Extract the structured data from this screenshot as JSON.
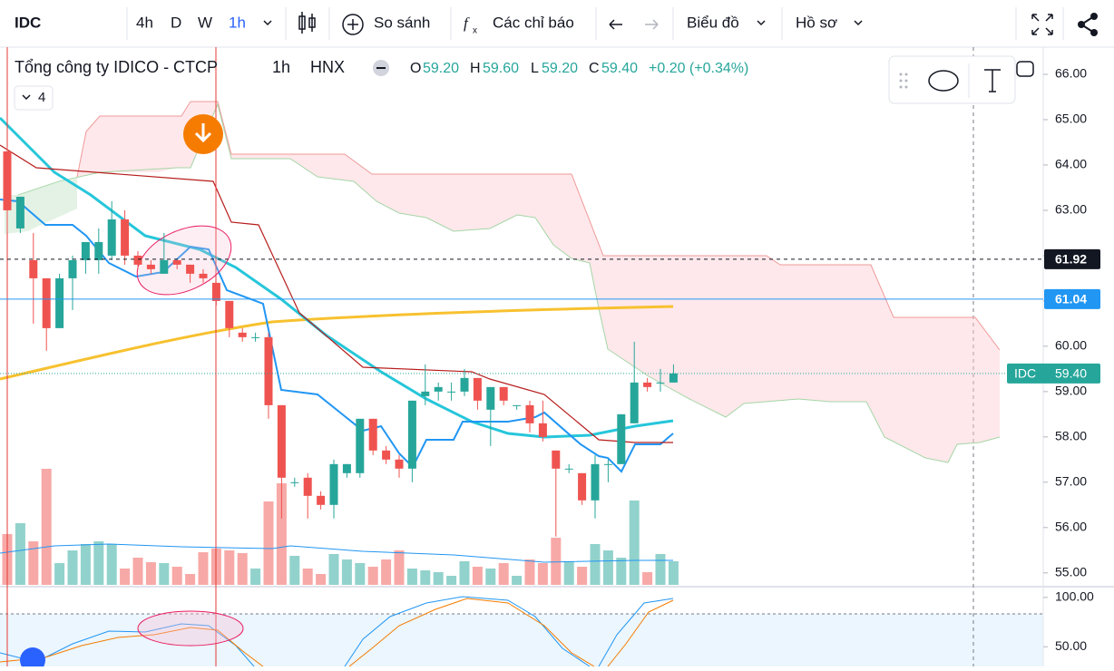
{
  "toolbar": {
    "symbol": "IDC",
    "intervals": [
      "4h",
      "D",
      "W",
      "1h"
    ],
    "compare": "So sánh",
    "indicators": "Các chỉ báo",
    "chart": "Biểu đồ",
    "profile": "Hồ sơ"
  },
  "legend": {
    "name": "Tổng công ty IDICO - CTCP",
    "interval": "1h",
    "exchange": "HNX",
    "o_label": "O",
    "o": "59.20",
    "h_label": "H",
    "h": "59.60",
    "l_label": "L",
    "l": "59.20",
    "c_label": "C",
    "c": "59.40",
    "change": "+0.20 (+0.34%)",
    "collapsed_count": "4"
  },
  "chart_data": {
    "type": "candlestick",
    "open": [
      64.3,
      62.6,
      61.9,
      61.5,
      60.4,
      61.5,
      61.9,
      61.9,
      62.0,
      62.8,
      62.0,
      61.8,
      61.6,
      61.9,
      61.8,
      61.6,
      61.4,
      61.0,
      60.3,
      60.2,
      60.2,
      58.7,
      57.0,
      57.1,
      56.7,
      56.5,
      57.2,
      57.2,
      58.4,
      57.7,
      57.5,
      57.3,
      58.9,
      59.0,
      59.0,
      59.0,
      59.3,
      58.6,
      59.1,
      58.7,
      58.7,
      58.3,
      57.7,
      57.3,
      57.2,
      56.6,
      57.4,
      57.4,
      58.3,
      59.2,
      59.2,
      59.2
    ],
    "high": [
      64.4,
      63.3,
      62.5,
      61.5,
      61.6,
      62.0,
      62.3,
      62.6,
      63.2,
      63.0,
      62.1,
      61.9,
      62.5,
      61.9,
      61.8,
      61.7,
      61.4,
      61.0,
      60.4,
      60.3,
      60.3,
      58.7,
      57.1,
      57.2,
      56.8,
      57.5,
      57.4,
      58.4,
      58.4,
      57.8,
      57.6,
      58.8,
      59.6,
      59.2,
      59.2,
      59.5,
      59.3,
      59.1,
      59.1,
      58.7,
      58.8,
      58.8,
      57.7,
      57.4,
      57.2,
      57.6,
      57.5,
      58.5,
      60.1,
      59.3,
      59.5,
      59.6
    ],
    "low": [
      62.5,
      62.5,
      60.5,
      59.9,
      60.4,
      60.8,
      61.6,
      61.6,
      61.9,
      61.8,
      61.7,
      61.6,
      61.6,
      61.7,
      61.4,
      61.4,
      60.9,
      60.2,
      60.1,
      60.1,
      58.4,
      56.2,
      56.9,
      56.2,
      56.4,
      56.2,
      57.1,
      57.1,
      57.6,
      57.4,
      57.1,
      57.0,
      58.7,
      58.8,
      58.8,
      58.9,
      58.6,
      57.8,
      58.7,
      58.6,
      58.1,
      57.9,
      55.8,
      57.2,
      56.5,
      56.2,
      57.0,
      57.4,
      58.3,
      59.0,
      59.0,
      59.2
    ],
    "close": [
      63.0,
      63.3,
      61.5,
      60.4,
      61.5,
      61.9,
      62.3,
      62.3,
      62.8,
      62.0,
      61.8,
      61.7,
      61.9,
      61.8,
      61.6,
      61.5,
      61.0,
      60.4,
      60.2,
      60.2,
      58.7,
      57.1,
      57.0,
      56.7,
      56.5,
      57.4,
      57.4,
      58.4,
      57.7,
      57.5,
      57.3,
      58.8,
      59.0,
      59.1,
      59.0,
      59.3,
      58.8,
      59.1,
      58.8,
      58.7,
      58.3,
      58.0,
      57.3,
      57.3,
      56.6,
      57.4,
      57.4,
      58.5,
      59.2,
      59.1,
      59.2,
      59.4
    ],
    "volume": [
      56,
      68,
      48,
      128,
      24,
      38,
      45,
      48,
      45,
      18,
      30,
      25,
      24,
      20,
      12,
      36,
      40,
      38,
      35,
      18,
      92,
      112,
      32,
      18,
      12,
      34,
      28,
      24,
      20,
      28,
      38,
      18,
      16,
      14,
      10,
      26,
      20,
      18,
      24,
      10,
      28,
      24,
      52,
      26,
      20,
      45,
      38,
      30,
      93,
      14,
      34,
      26
    ],
    "up_color": "#26a69a",
    "down_color": "#ef5350",
    "ylim": [
      54.8,
      66.6
    ],
    "yticks": [
      {
        "value": 66,
        "label": "66.00"
      },
      {
        "value": 65,
        "label": "65.00"
      },
      {
        "value": 64,
        "label": "64.00"
      },
      {
        "value": 63,
        "label": "63.00"
      },
      {
        "value": 62,
        "label": "62.00"
      },
      {
        "value": 61,
        "label": "61.00"
      },
      {
        "value": 60,
        "label": "60.00"
      },
      {
        "value": 59,
        "label": "59.00"
      },
      {
        "value": 58,
        "label": "58.00"
      },
      {
        "value": 57,
        "label": "57.00"
      },
      {
        "value": 56,
        "label": "56.00"
      },
      {
        "value": 55,
        "label": "55.00"
      }
    ],
    "price_lines": [
      {
        "value": 61.92,
        "label": "61.92",
        "color": "#131722"
      },
      {
        "value": 61.04,
        "label": "61.04",
        "color": "#2196f3"
      }
    ],
    "last_price": {
      "name": "IDC",
      "value": 59.4,
      "label": "59.40",
      "color": "#26a69a"
    },
    "osc_ylim": [
      30,
      110
    ],
    "osc_yticks": [
      {
        "value": 100,
        "label": "100.00"
      },
      {
        "value": 50,
        "label": "50.00"
      }
    ]
  }
}
